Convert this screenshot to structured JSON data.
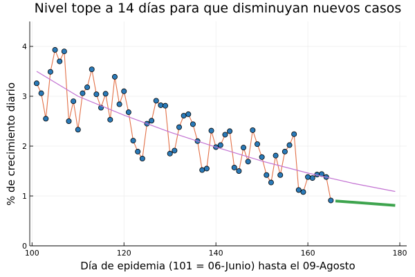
{
  "chart_data": {
    "type": "scatter",
    "title": "Nivel tope a 14 días para que disminuyan nuevos casos",
    "xlabel": "Día de epidemia (101 = 06-Junio) hasta el 09-Agosto",
    "ylabel": "% de crecimiento diario",
    "xlim": [
      99.5,
      181.5
    ],
    "ylim": [
      0,
      4.5
    ],
    "xticks": [
      100,
      120,
      140,
      160,
      180
    ],
    "yticks": [
      0,
      1,
      2,
      3,
      4
    ],
    "grid": true,
    "legend": "none",
    "colors": {
      "observed_line": "#e26f46",
      "observed_points": "#2a7ab8",
      "trend": "#c271d2",
      "projection": "#3ea44e"
    },
    "series": [
      {
        "kind": "observed",
        "x": [
          101,
          102,
          103,
          104,
          105,
          106,
          107,
          108,
          109,
          110,
          111,
          112,
          113,
          114,
          115,
          116,
          117,
          118,
          119,
          120,
          121,
          122,
          123,
          124,
          125,
          126,
          127,
          128,
          129,
          130,
          131,
          132,
          133,
          134,
          135,
          136,
          137,
          138,
          139,
          140,
          141,
          142,
          143,
          144,
          145,
          146,
          147,
          148,
          149,
          150,
          151,
          152,
          153,
          154,
          155,
          156,
          157,
          158,
          159,
          160,
          161,
          162,
          163,
          164,
          165
        ],
        "y": [
          3.26,
          3.06,
          2.55,
          3.49,
          3.93,
          3.7,
          3.9,
          2.5,
          2.9,
          2.33,
          3.06,
          3.18,
          3.54,
          3.04,
          2.77,
          3.05,
          2.53,
          3.39,
          2.84,
          3.1,
          2.68,
          2.11,
          1.89,
          1.75,
          2.45,
          2.51,
          2.91,
          2.82,
          2.81,
          1.85,
          1.91,
          2.38,
          2.61,
          2.64,
          2.44,
          2.1,
          1.52,
          1.55,
          2.31,
          1.98,
          2.02,
          2.23,
          2.3,
          1.57,
          1.5,
          1.97,
          1.69,
          2.32,
          2.04,
          1.78,
          1.42,
          1.27,
          1.81,
          1.42,
          1.89,
          2.02,
          2.24,
          1.12,
          1.08,
          1.38,
          1.36,
          1.43,
          1.44,
          1.38,
          0.91
        ]
      },
      {
        "kind": "trend",
        "x": [
          101,
          110,
          120,
          130,
          140,
          150,
          160,
          170,
          179
        ],
        "y": [
          3.5,
          3.0,
          2.62,
          2.28,
          1.98,
          1.7,
          1.46,
          1.25,
          1.09
        ]
      },
      {
        "kind": "projection",
        "x": [
          166,
          179
        ],
        "y": [
          0.9,
          0.81
        ]
      }
    ]
  }
}
